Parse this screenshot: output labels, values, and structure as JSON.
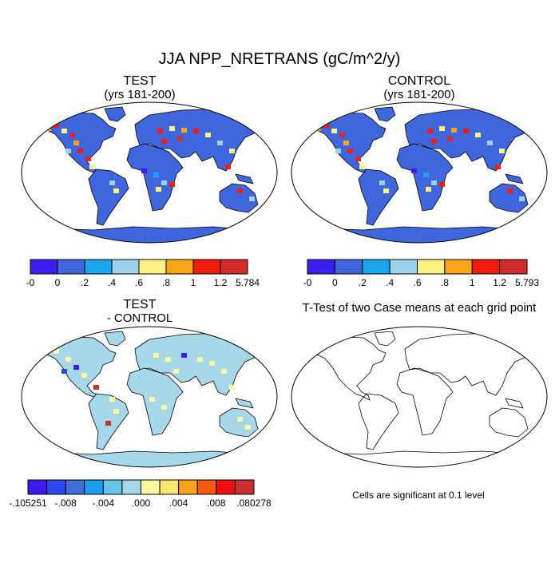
{
  "title": "JJA NPP_NRETRANS (gC/m^2/y)",
  "panels": [
    {
      "title": "TEST",
      "subtitle": "(yrs 181-200)",
      "colorbar": {
        "colors": [
          "#3b1ff0",
          "#3f66dd",
          "#1aa6ef",
          "#9dd3ea",
          "#fcf383",
          "#f8a51a",
          "#f21c0e",
          "#d12b2e"
        ],
        "labels": [
          "-0",
          "0",
          ".2",
          ".4",
          ".6",
          ".8",
          "1",
          "1.2",
          "5.784"
        ]
      }
    },
    {
      "title": "CONTROL",
      "subtitle": "(yrs 181-200)",
      "colorbar": {
        "colors": [
          "#3b1ff0",
          "#3f66dd",
          "#1aa6ef",
          "#9dd3ea",
          "#fcf383",
          "#f8a51a",
          "#f21c0e",
          "#d12b2e"
        ],
        "labels": [
          "-0",
          "0",
          ".2",
          ".4",
          ".6",
          ".8",
          "1",
          "1.2",
          "5.793"
        ]
      }
    },
    {
      "title": "TEST",
      "subtitle": "- CONTROL",
      "colorbar": {
        "colors": [
          "#3d1af0",
          "#2c47ec",
          "#3f6edb",
          "#1a9ef0",
          "#66c3ea",
          "#a6d8ea",
          "#fff8a0",
          "#fbe770",
          "#f9a41a",
          "#f55a10",
          "#ef0f0f",
          "#c9302f"
        ],
        "labels": [
          "-.105251",
          "-.008",
          "-.004",
          ".000",
          ".004",
          ".008",
          ".080278"
        ]
      }
    },
    {
      "title": "T-Test of two Case means at each grid point",
      "note": "Cells are significant at 0.1 level"
    }
  ]
}
